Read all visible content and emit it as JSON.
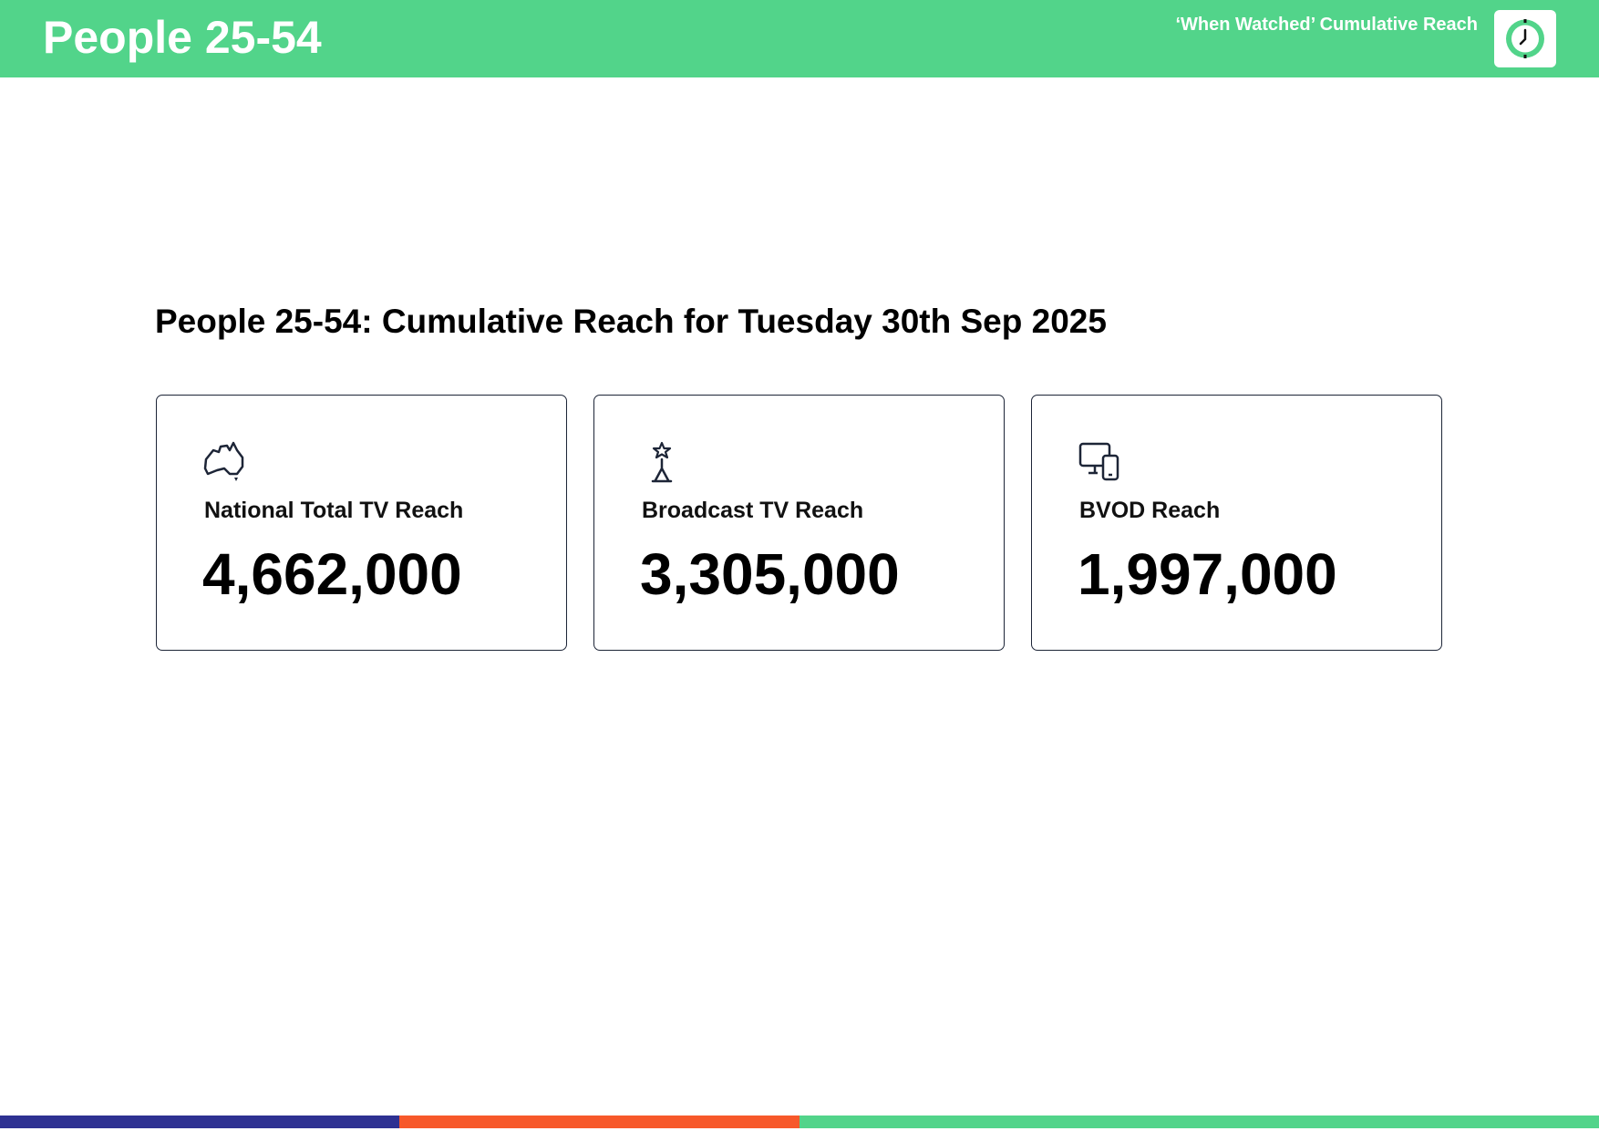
{
  "header": {
    "title": "People 25-54",
    "subtitle": "‘When Watched’ Cumulative Reach"
  },
  "heading": "People 25-54: Cumulative Reach for Tuesday 30th Sep 2025",
  "cards": [
    {
      "label": "National Total TV Reach",
      "value": "4,662,000"
    },
    {
      "label": "Broadcast TV Reach",
      "value": "3,305,000"
    },
    {
      "label": "BVOD Reach",
      "value": "1,997,000"
    }
  ]
}
